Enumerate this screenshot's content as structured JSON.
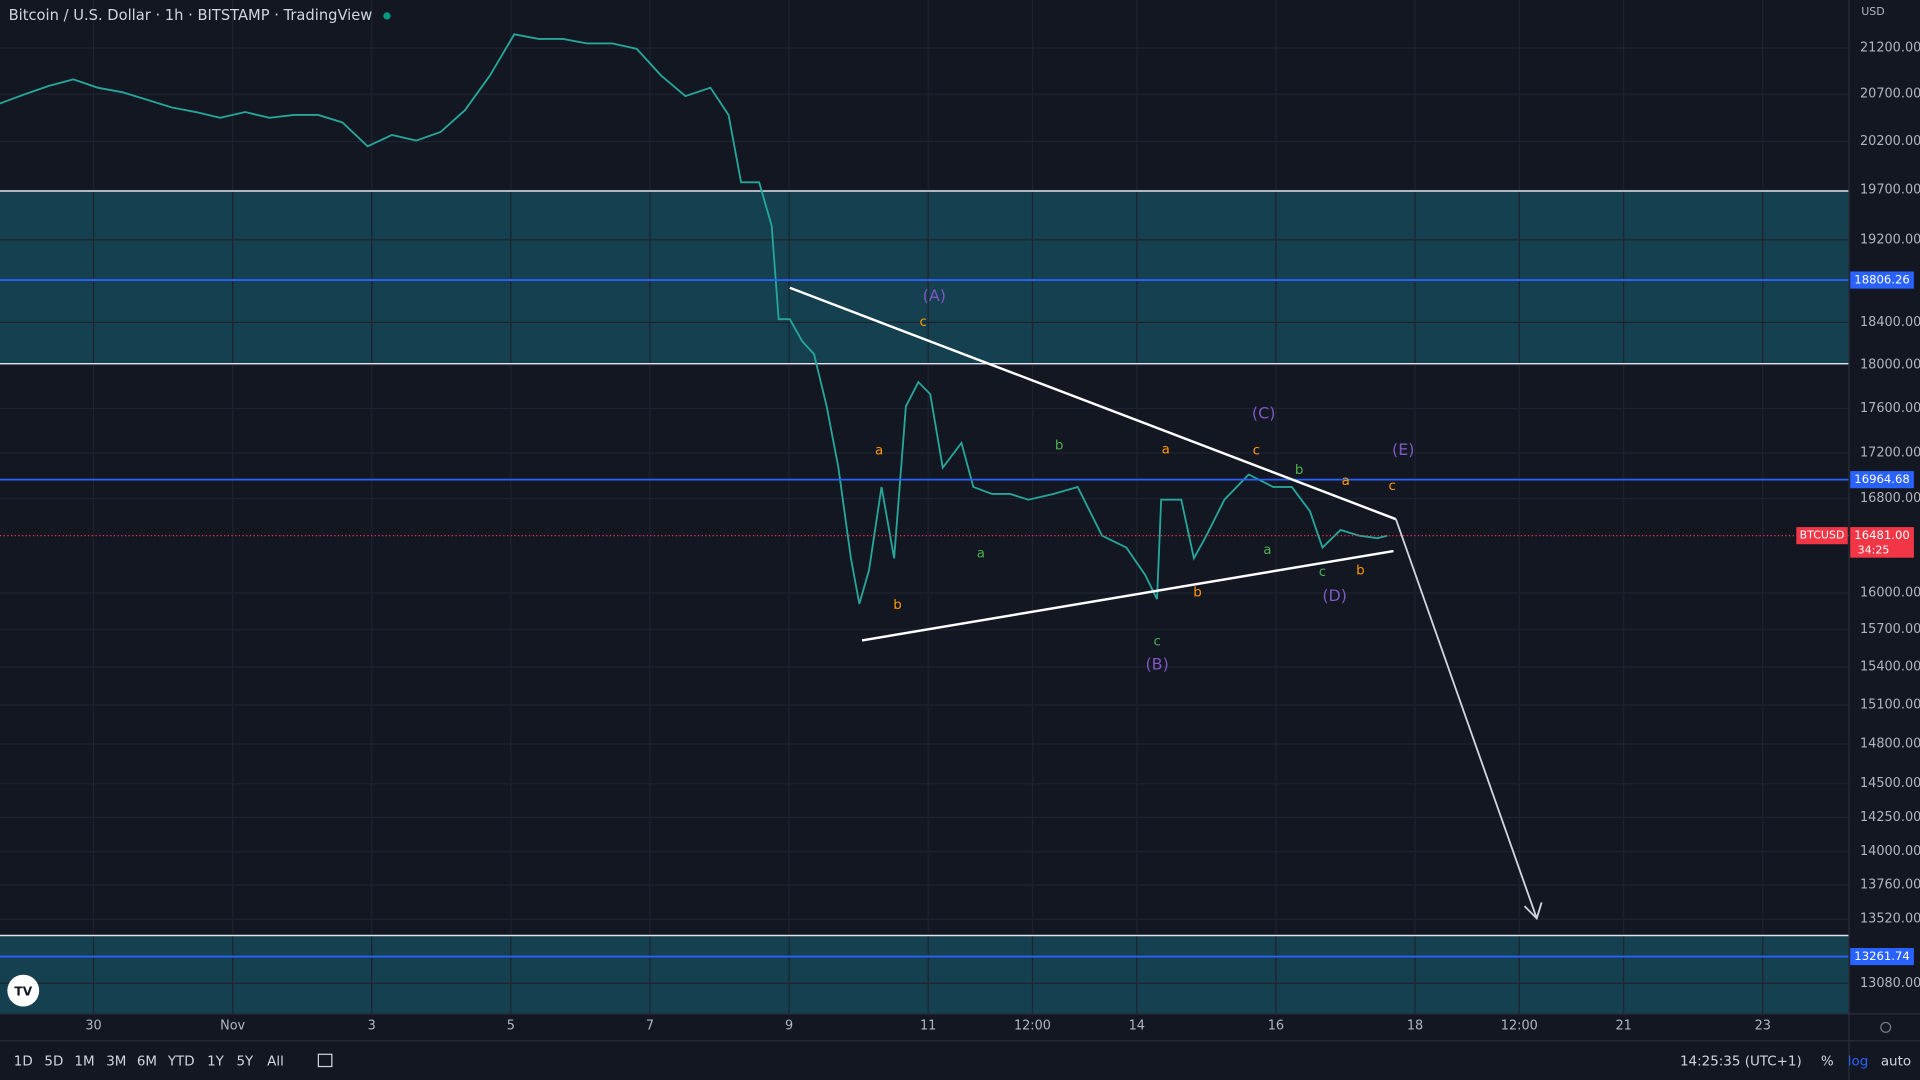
{
  "header": {
    "title": "Bitcoin / U.S. Dollar · 1h · BITSTAMP · TradingView",
    "currency": "USD"
  },
  "chart_data": {
    "type": "line",
    "color": "#26a69a",
    "log": true,
    "grid": true,
    "x": [
      -2.35,
      -1.99,
      -1.64,
      -1.29,
      -0.94,
      -0.58,
      -0.23,
      0.12,
      0.47,
      0.82,
      1.18,
      1.53,
      1.88,
      2.23,
      2.58,
      2.94,
      3.29,
      3.64,
      3.99,
      4.34,
      4.7,
      5.05,
      5.4,
      5.75,
      6.1,
      6.46,
      6.81,
      7.16,
      7.51,
      7.87,
      8.13,
      8.31,
      8.57,
      8.75,
      8.85,
      9.01,
      9.19,
      9.36,
      9.54,
      9.71,
      9.89,
      10.01,
      10.15,
      10.33,
      10.51,
      10.68,
      10.86,
      11.03,
      11.21,
      11.48,
      11.65,
      11.92,
      12.18,
      12.44,
      12.8,
      13.15,
      13.5,
      13.85,
      14.12,
      14.29,
      14.35,
      14.64,
      14.82,
      15.0,
      15.26,
      15.61,
      15.96,
      16.23,
      16.49,
      16.67,
      16.93,
      17.2,
      17.46,
      17.6
    ],
    "values": [
      20600,
      20700,
      20790,
      20860,
      20770,
      20720,
      20640,
      20560,
      20510,
      20450,
      20510,
      20450,
      20480,
      20480,
      20400,
      20150,
      20270,
      20210,
      20300,
      20530,
      20900,
      21350,
      21300,
      21300,
      21250,
      21250,
      21190,
      20900,
      20680,
      20770,
      20480,
      19780,
      19780,
      19340,
      18430,
      18430,
      18220,
      18100,
      17620,
      17070,
      16290,
      15910,
      16190,
      16900,
      16290,
      17620,
      17840,
      17730,
      17070,
      17290,
      16900,
      16840,
      16840,
      16790,
      16840,
      16900,
      16480,
      16380,
      16150,
      15950,
      16790,
      16790,
      16290,
      16480,
      16790,
      17010,
      16900,
      16900,
      16690,
      16380,
      16530,
      16480,
      16460,
      16481
    ],
    "xlim": [
      -2.345,
      24.24
    ],
    "ylim": [
      12875,
      21732
    ],
    "xticks": [
      {
        "value": -1,
        "label": "30"
      },
      {
        "value": 1,
        "label": "Nov"
      },
      3,
      5,
      7,
      9,
      11,
      {
        "value": 12.5,
        "label": "12:00"
      },
      14,
      16,
      18,
      {
        "value": 19.5,
        "label": "12:00"
      },
      21,
      23
    ],
    "yticks": [
      {
        "value": 21200,
        "label": "21200.00"
      },
      {
        "value": 20700,
        "label": "20700.00"
      },
      {
        "value": 20200,
        "label": "20200.00"
      },
      {
        "value": 19700,
        "label": "19700.00"
      },
      {
        "value": 19200,
        "label": "19200.00"
      },
      {
        "value": 18400,
        "label": "18400.00"
      },
      {
        "value": 18000,
        "label": "18000.00"
      },
      {
        "value": 17600,
        "label": "17600.00"
      },
      {
        "value": 17200,
        "label": "17200.00"
      },
      {
        "value": 16800,
        "label": "16800.00"
      },
      {
        "value": 16000,
        "label": "16000.00"
      },
      {
        "value": 15700,
        "label": "15700.00"
      },
      {
        "value": 15400,
        "label": "15400.00"
      },
      {
        "value": 15100,
        "label": "15100.00"
      },
      {
        "value": 14800,
        "label": "14800.00"
      },
      {
        "value": 14500,
        "label": "14500.00"
      },
      {
        "value": 14250,
        "label": "14250.00"
      },
      {
        "value": 14000,
        "label": "14000.00"
      },
      {
        "value": 13760,
        "label": "13760.00"
      },
      {
        "value": 13520,
        "label": "13520.00"
      },
      {
        "value": 13080,
        "label": "13080.00"
      }
    ],
    "levels": [
      {
        "value": 18806.26,
        "label": "18806.26",
        "color": "#2962ff"
      },
      {
        "value": 16964.68,
        "label": "16964.68",
        "color": "#2962ff"
      },
      {
        "value": 13261.74,
        "label": "13261.74",
        "color": "#2962ff"
      }
    ],
    "last_price": {
      "value": 16481,
      "label": "16481.00",
      "symbol": "BTCUSD",
      "countdown": "34:25",
      "color": "#f23645"
    },
    "wave_labels": [
      "(A)",
      "c",
      "a",
      "b",
      "a",
      "b",
      "c",
      "(B)",
      "a",
      "b",
      "(C)",
      "c",
      "b",
      "a",
      "c",
      "(D)",
      "a",
      "b",
      "(E)",
      "c"
    ]
  },
  "toolbar": {
    "ranges": [
      "1D",
      "5D",
      "1M",
      "3M",
      "6M",
      "YTD",
      "1Y",
      "5Y",
      "All"
    ],
    "time": "14:25:35 (UTC+1)",
    "percent": "%",
    "log": "log",
    "auto": "auto"
  }
}
